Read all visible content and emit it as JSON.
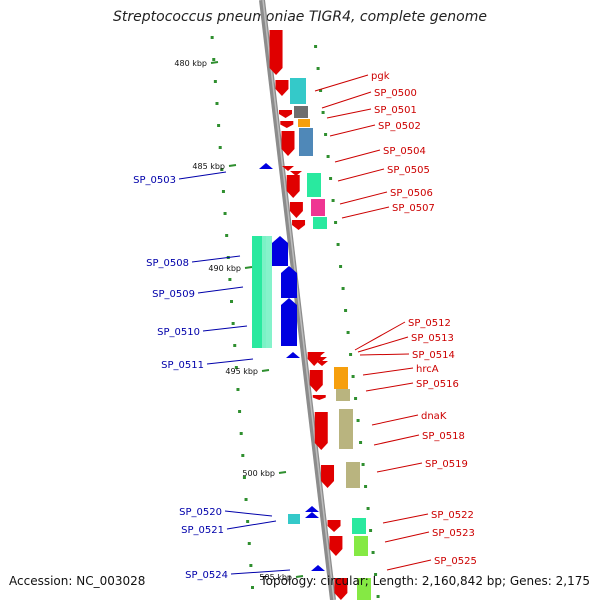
{
  "title": "Streptococcus pneumoniae TIGR4, complete genome",
  "footer": {
    "accession": "Accession: NC_003028",
    "stats": "Topology: circular; Length: 2,160,842 bp; Genes: 2,175"
  },
  "colors": {
    "backbone": "#8c8c8c",
    "forward_genes": "#e00000",
    "reverse_genes": "#0000e0",
    "ruler_ticks": "#2f8f2f",
    "right_labels": "#cc0000",
    "left_labels": "#0000aa",
    "cog_cyan": "#29c6c6",
    "cog_gray": "#666666",
    "cog_orange": "#f59a00",
    "cog_steelblue": "#4682b4",
    "cog_springgreen": "#1de89a",
    "cog_magenta": "#ee2a8c",
    "cog_khaki": "#b5b078",
    "cog_limegreen": "#7ee83a"
  },
  "scale_labels": [
    "480 kbp",
    "485 kbp",
    "490 kbp",
    "495 kbp",
    "500 kbp",
    "505 kbp"
  ],
  "right_genes": [
    "pgk",
    "SP_0500",
    "SP_0501",
    "SP_0502",
    "SP_0504",
    "SP_0505",
    "SP_0506",
    "SP_0507",
    "SP_0512",
    "SP_0513",
    "SP_0514",
    "hrcA",
    "SP_0516",
    "dnaK",
    "SP_0518",
    "SP_0519",
    "SP_0522",
    "SP_0523",
    "SP_0525"
  ],
  "left_genes": [
    "SP_0503",
    "SP_0508",
    "SP_0509",
    "SP_0510",
    "SP_0511",
    "SP_0520",
    "SP_0521",
    "SP_0524"
  ]
}
